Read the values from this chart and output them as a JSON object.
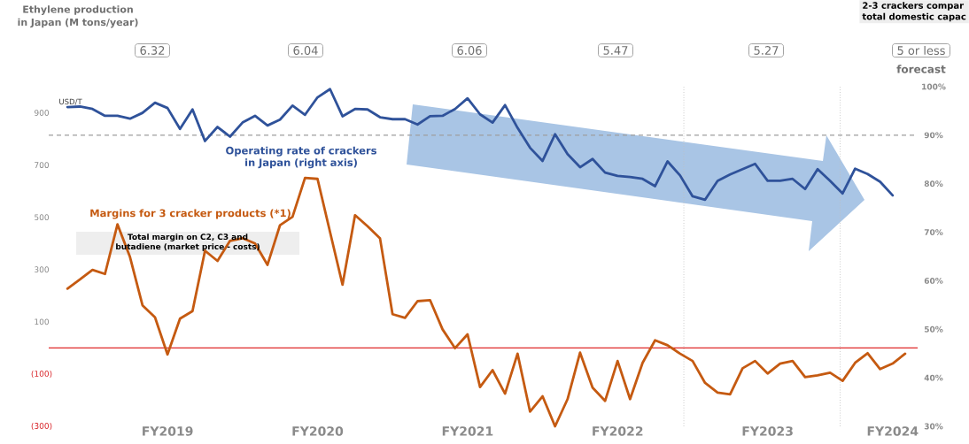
{
  "chart_data": {
    "type": "line",
    "ylabel": "USD/T",
    "categories": [
      null,
      null,
      null,
      null,
      null,
      null,
      null,
      null,
      "FY2019",
      null,
      null,
      null,
      null,
      null,
      null,
      null,
      null,
      null,
      null,
      null,
      "FY2020",
      null,
      null,
      null,
      null,
      null,
      null,
      null,
      null,
      null,
      null,
      null,
      "FY2021",
      null,
      null,
      null,
      null,
      null,
      null,
      null,
      null,
      null,
      null,
      null,
      "FY2022",
      null,
      null,
      null,
      null,
      null,
      null,
      null,
      null,
      null,
      null,
      null,
      "FY2023",
      null,
      null,
      null,
      null,
      null,
      null,
      null,
      null,
      null,
      "FY2024",
      null
    ],
    "ylim": [
      -300,
      1000
    ],
    "yticks": [
      {
        "value": -300,
        "label": "(300)"
      },
      {
        "value": -100,
        "label": "(100)"
      },
      100,
      300,
      500,
      700,
      900
    ],
    "y2lim": [
      30,
      100
    ],
    "y2ticks": [
      {
        "value": 30,
        "label": "30%"
      },
      {
        "value": 40,
        "label": "40%"
      },
      {
        "value": 50,
        "label": "50%"
      },
      {
        "value": 60,
        "label": "60%"
      },
      {
        "value": 70,
        "label": "70%"
      },
      {
        "value": 80,
        "label": "80%"
      },
      {
        "value": 90,
        "label": "90%"
      },
      {
        "value": 100,
        "label": "100%"
      }
    ],
    "series": [
      {
        "name": "Operating rate of crackers in Japan (right axis)",
        "color": "#2f529a",
        "axis": "y2",
        "values": [
          95.8,
          95.9,
          95.4,
          94.0,
          94.0,
          93.4,
          94.6,
          96.7,
          95.6,
          91.3,
          95.3,
          88.8,
          91.7,
          89.7,
          92.6,
          94.0,
          92.0,
          93.2,
          96.1,
          94.2,
          97.8,
          99.5,
          93.9,
          95.4,
          95.3,
          93.7,
          93.3,
          93.3,
          92.2,
          93.9,
          94.0,
          95.4,
          97.6,
          94.3,
          92.6,
          96.2,
          91.5,
          87.4,
          84.7,
          90.2,
          86.1,
          83.4,
          85.1,
          82.3,
          81.6,
          81.4,
          81.0,
          79.5,
          84.6,
          81.7,
          77.4,
          76.7,
          80.6,
          81.9,
          83.0,
          84.1,
          80.6,
          80.6,
          81.0,
          78.9,
          83.0,
          80.6,
          78.0,
          83.1,
          82.0,
          80.4,
          77.6,
          null
        ]
      },
      {
        "name": "Margins for 3 cracker products (*1)",
        "color": "#c55a11",
        "values": [
          227,
          262,
          299,
          283,
          473,
          348,
          163,
          117,
          -25,
          112,
          141,
          372,
          333,
          410,
          420,
          400,
          318,
          470,
          502,
          651,
          647,
          444,
          242,
          508,
          466,
          419,
          129,
          115,
          179,
          183,
          71,
          -1,
          52,
          -150,
          -85,
          -175,
          -22,
          -244,
          -185,
          -300,
          -196,
          -18,
          -152,
          -203,
          -50,
          -196,
          -57,
          29,
          10,
          -22,
          -50,
          -134,
          -171,
          -178,
          -78,
          -50,
          -98,
          -60,
          -50,
          -112,
          -105,
          -95,
          -126,
          -57,
          -20,
          -81,
          -60,
          -22
        ]
      }
    ],
    "ref_lines": [
      {
        "axis": "y",
        "value": 0,
        "color": "#e02a2a",
        "line_style": "solid"
      },
      {
        "axis": "y2",
        "value": 90,
        "color": "#9e9e9e",
        "line_style": "dashed"
      }
    ],
    "annotations": [
      "Ethylene production in Japan (M tons/year)",
      "6.32",
      "6.04",
      "6.06",
      "5.47",
      "5.27",
      "5 or less",
      "forecast",
      "2-3 crackers compar",
      "total domestic capac",
      "Total margin on C2, C3 and butadiene (market price - costs)"
    ]
  }
}
